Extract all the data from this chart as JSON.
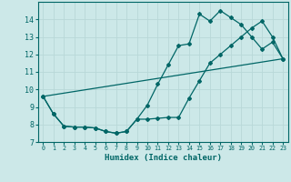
{
  "xlabel": "Humidex (Indice chaleur)",
  "background_color": "#cce8e8",
  "grid_color": "#b8d8d8",
  "line_color": "#006666",
  "xlim": [
    -0.5,
    23.5
  ],
  "ylim": [
    7.0,
    15.0
  ],
  "yticks": [
    7,
    8,
    9,
    10,
    11,
    12,
    13,
    14
  ],
  "xticks": [
    0,
    1,
    2,
    3,
    4,
    5,
    6,
    7,
    8,
    9,
    10,
    11,
    12,
    13,
    14,
    15,
    16,
    17,
    18,
    19,
    20,
    21,
    22,
    23
  ],
  "line1_x": [
    0,
    1,
    2,
    3,
    4,
    5,
    6,
    7,
    8,
    9,
    10,
    11,
    12,
    13,
    14,
    15,
    16,
    17,
    18,
    19,
    20,
    21,
    22,
    23
  ],
  "line1_y": [
    9.6,
    8.6,
    7.9,
    7.85,
    7.85,
    7.8,
    7.6,
    7.5,
    7.6,
    8.3,
    9.1,
    10.3,
    11.4,
    12.5,
    12.6,
    14.3,
    13.9,
    14.5,
    14.1,
    13.7,
    13.0,
    12.3,
    12.7,
    11.75
  ],
  "line2_x": [
    0,
    1,
    2,
    3,
    4,
    5,
    6,
    7,
    8,
    9,
    10,
    11,
    12,
    13,
    14,
    15,
    16,
    17,
    18,
    19,
    20,
    21,
    22,
    23
  ],
  "line2_y": [
    9.6,
    8.6,
    7.9,
    7.85,
    7.85,
    7.8,
    7.6,
    7.5,
    7.6,
    8.3,
    8.3,
    8.35,
    8.4,
    8.4,
    9.5,
    10.5,
    11.5,
    12.0,
    12.5,
    13.0,
    13.5,
    13.9,
    13.0,
    11.75
  ],
  "line3_x": [
    0,
    23
  ],
  "line3_y": [
    9.6,
    11.75
  ]
}
